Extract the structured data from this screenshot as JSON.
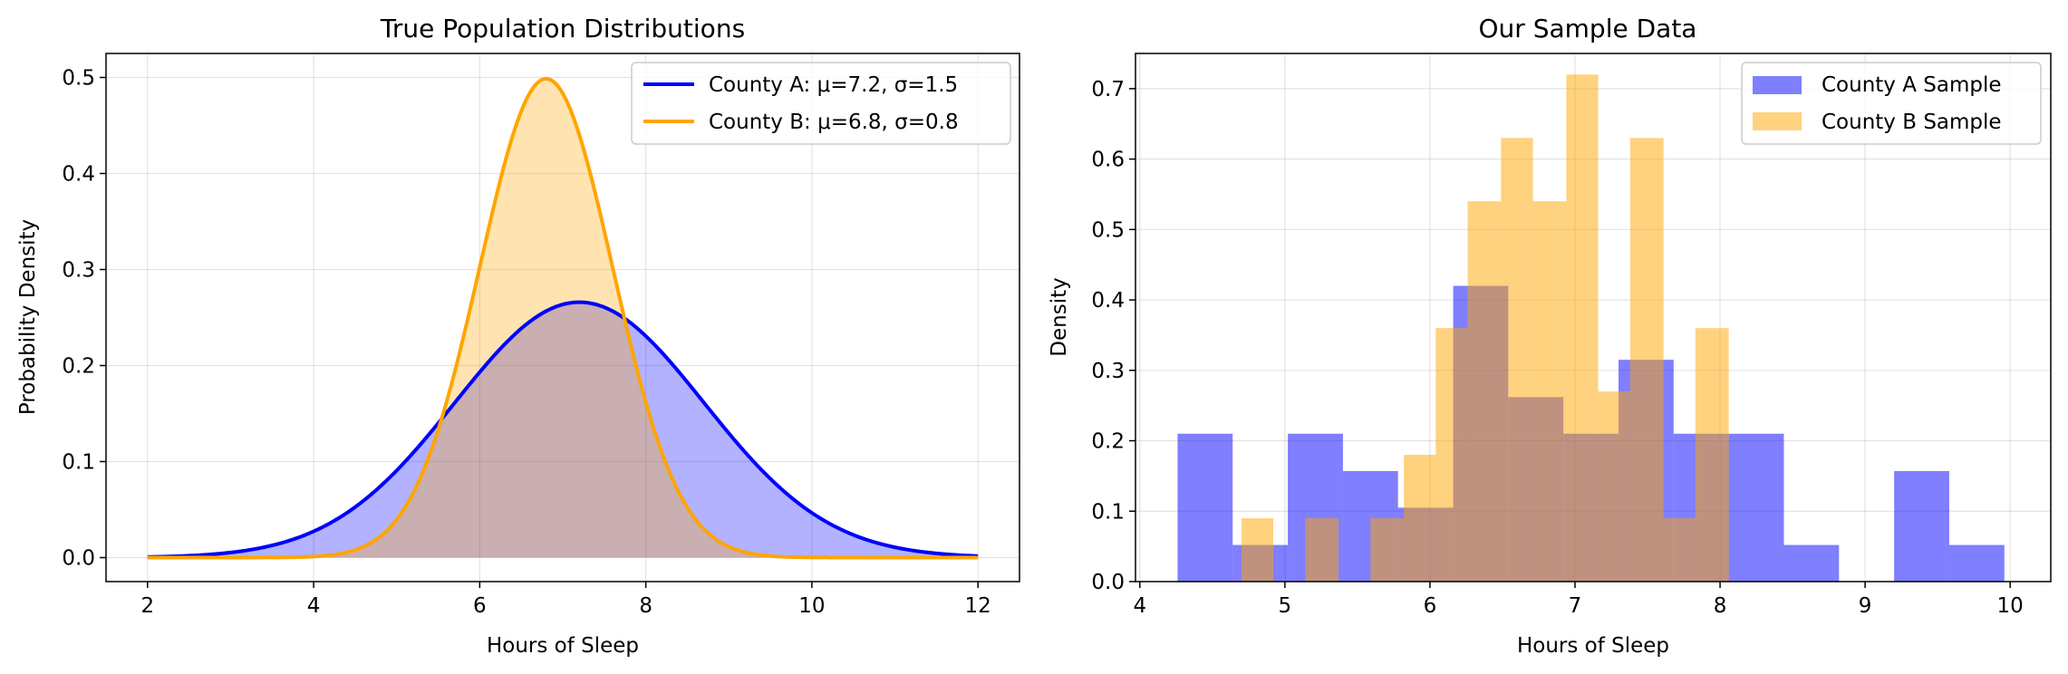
{
  "chart_data": [
    {
      "type": "line",
      "title": "True Population Distributions",
      "xlabel": "Hours of Sleep",
      "ylabel": "Probability Density",
      "xlim": [
        1.5,
        12.5
      ],
      "ylim": [
        -0.025,
        0.525
      ],
      "xticks": [
        2,
        4,
        6,
        8,
        10,
        12
      ],
      "yticks": [
        0.0,
        0.1,
        0.2,
        0.3,
        0.4,
        0.5
      ],
      "xtick_labels": [
        "2",
        "4",
        "6",
        "8",
        "10",
        "12"
      ],
      "ytick_labels": [
        "0.0",
        "0.1",
        "0.2",
        "0.3",
        "0.4",
        "0.5"
      ],
      "grid": true,
      "legend_position": "top-right",
      "x_range": [
        2,
        12
      ],
      "series": [
        {
          "name": "County A: μ=7.2, σ=1.5",
          "mean": 7.2,
          "sd": 1.5,
          "color": "#0000ff",
          "fill": "#0000ff"
        },
        {
          "name": "County B: μ=6.8, σ=0.8",
          "mean": 6.8,
          "sd": 0.8,
          "color": "#ffa500",
          "fill": "#ffa500"
        }
      ]
    },
    {
      "type": "bar",
      "title": "Our Sample Data",
      "xlabel": "Hours of Sleep",
      "ylabel": "Density",
      "xlim": [
        3.97,
        10.28
      ],
      "ylim": [
        0,
        0.75
      ],
      "xticks": [
        4,
        5,
        6,
        7,
        8,
        9,
        10
      ],
      "yticks": [
        0.0,
        0.1,
        0.2,
        0.3,
        0.4,
        0.5,
        0.6,
        0.7
      ],
      "xtick_labels": [
        "4",
        "5",
        "6",
        "7",
        "8",
        "9",
        "10"
      ],
      "ytick_labels": [
        "0.0",
        "0.1",
        "0.2",
        "0.3",
        "0.4",
        "0.5",
        "0.6",
        "0.7"
      ],
      "grid": true,
      "legend_position": "top-right",
      "series": [
        {
          "name": "County A Sample",
          "color": "#0000ff",
          "alpha": 0.5,
          "bins": [
            {
              "x0": 4.26,
              "x1": 4.64,
              "value": 0.21
            },
            {
              "x0": 4.64,
              "x1": 5.02,
              "value": 0.052
            },
            {
              "x0": 5.02,
              "x1": 5.4,
              "value": 0.21
            },
            {
              "x0": 5.4,
              "x1": 5.78,
              "value": 0.157
            },
            {
              "x0": 5.78,
              "x1": 6.16,
              "value": 0.105
            },
            {
              "x0": 6.16,
              "x1": 6.54,
              "value": 0.42
            },
            {
              "x0": 6.54,
              "x1": 6.92,
              "value": 0.262
            },
            {
              "x0": 6.92,
              "x1": 7.3,
              "value": 0.21
            },
            {
              "x0": 7.3,
              "x1": 7.68,
              "value": 0.315
            },
            {
              "x0": 7.68,
              "x1": 8.06,
              "value": 0.21
            },
            {
              "x0": 8.06,
              "x1": 8.44,
              "value": 0.21
            },
            {
              "x0": 8.44,
              "x1": 8.82,
              "value": 0.052
            },
            {
              "x0": 8.82,
              "x1": 9.2,
              "value": 0.0
            },
            {
              "x0": 9.2,
              "x1": 9.58,
              "value": 0.157
            },
            {
              "x0": 9.58,
              "x1": 9.96,
              "value": 0.052
            }
          ]
        },
        {
          "name": "County B Sample",
          "color": "#ffa500",
          "alpha": 0.5,
          "bins": [
            {
              "x0": 4.7,
              "x1": 4.92,
              "value": 0.09
            },
            {
              "x0": 4.92,
              "x1": 5.14,
              "value": 0.0
            },
            {
              "x0": 5.14,
              "x1": 5.37,
              "value": 0.09
            },
            {
              "x0": 5.37,
              "x1": 5.59,
              "value": 0.0
            },
            {
              "x0": 5.59,
              "x1": 5.82,
              "value": 0.09
            },
            {
              "x0": 5.82,
              "x1": 6.04,
              "value": 0.18
            },
            {
              "x0": 6.04,
              "x1": 6.26,
              "value": 0.36
            },
            {
              "x0": 6.26,
              "x1": 6.49,
              "value": 0.54
            },
            {
              "x0": 6.49,
              "x1": 6.71,
              "value": 0.63
            },
            {
              "x0": 6.71,
              "x1": 6.94,
              "value": 0.54
            },
            {
              "x0": 6.94,
              "x1": 7.16,
              "value": 0.72
            },
            {
              "x0": 7.16,
              "x1": 7.38,
              "value": 0.27
            },
            {
              "x0": 7.38,
              "x1": 7.61,
              "value": 0.63
            },
            {
              "x0": 7.61,
              "x1": 7.83,
              "value": 0.09
            },
            {
              "x0": 7.83,
              "x1": 8.06,
              "value": 0.36
            }
          ]
        }
      ]
    }
  ]
}
